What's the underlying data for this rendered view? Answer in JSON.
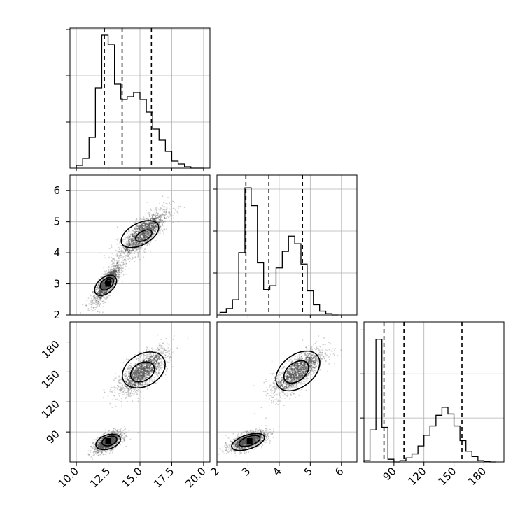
{
  "chart_data": {
    "type": "corner",
    "parameters": [
      {
        "id": "p1",
        "range": [
          9.5,
          20.5
        ],
        "ticks": [
          "10.0",
          "12.5",
          "15.0",
          "17.5",
          "20.0"
        ],
        "tick_values": [
          10,
          12.5,
          15,
          17.5,
          20
        ]
      },
      {
        "id": "p2",
        "range": [
          2,
          6.5
        ],
        "ticks": [
          "2",
          "3",
          "4",
          "5",
          "6"
        ],
        "tick_values": [
          2,
          3,
          4,
          5,
          6
        ]
      },
      {
        "id": "p3",
        "range": [
          60,
          200
        ],
        "ticks": [
          "90",
          "120",
          "150",
          "180"
        ],
        "tick_values": [
          90,
          120,
          150,
          180
        ]
      }
    ],
    "histograms": [
      {
        "param": "p1",
        "bin_edges": [
          10,
          10.5,
          11,
          11.5,
          12,
          12.5,
          13,
          13.5,
          14,
          14.5,
          15,
          15.5,
          16,
          16.5,
          17,
          17.5,
          18,
          18.5,
          19,
          19.5,
          20
        ],
        "counts": [
          0.02,
          0.07,
          0.22,
          0.57,
          0.95,
          0.88,
          0.6,
          0.49,
          0.51,
          0.54,
          0.49,
          0.4,
          0.28,
          0.2,
          0.12,
          0.05,
          0.03,
          0.01,
          0,
          0
        ],
        "ymax": 1.0,
        "quantiles": [
          12.2,
          13.6,
          15.9
        ]
      },
      {
        "param": "p2",
        "bin_edges": [
          2.1,
          2.3,
          2.5,
          2.7,
          2.9,
          3.1,
          3.3,
          3.5,
          3.7,
          3.9,
          4.1,
          4.3,
          4.5,
          4.7,
          4.9,
          5.1,
          5.3,
          5.5,
          5.7,
          5.9
        ],
        "counts": [
          0.02,
          0.05,
          0.12,
          0.49,
          1.0,
          0.86,
          0.41,
          0.2,
          0.23,
          0.37,
          0.5,
          0.62,
          0.56,
          0.4,
          0.19,
          0.08,
          0.03,
          0.01,
          0
        ],
        "ymax": 1.1,
        "quantiles": [
          2.93,
          3.67,
          4.75
        ]
      },
      {
        "param": "p3",
        "bin_edges": [
          60,
          66,
          72,
          78,
          84,
          90,
          96,
          102,
          108,
          114,
          120,
          126,
          132,
          138,
          144,
          150,
          156,
          162,
          168,
          174,
          180,
          186,
          192
        ],
        "counts": [
          0.01,
          0.24,
          0.92,
          0.26,
          0.02,
          0,
          0.01,
          0.03,
          0.06,
          0.12,
          0.2,
          0.27,
          0.35,
          0.41,
          0.36,
          0.27,
          0.16,
          0.08,
          0.04,
          0.01,
          0.005,
          0,
          0
        ],
        "ymax": 1.05,
        "quantiles": [
          80,
          100,
          158
        ]
      }
    ],
    "hist_y_ticks": [
      0.33,
      0.66,
      0.99
    ],
    "scatter_panels": [
      {
        "x": "p1",
        "y": "p2",
        "components": [
          {
            "mx": 12.4,
            "my": 3.0,
            "sx": 0.55,
            "sy": 0.32,
            "rho": 0.8,
            "weight": 0.5
          },
          {
            "mx": 15.2,
            "my": 4.6,
            "sx": 1.0,
            "sy": 0.42,
            "rho": 0.8,
            "weight": 0.5
          }
        ],
        "contours": [
          {
            "cx": 12.3,
            "cy": 2.95,
            "rx": 1.0,
            "ry": 0.25,
            "angle": -40
          },
          {
            "cx": 12.4,
            "cy": 3.0,
            "rx": 0.6,
            "ry": 0.16,
            "angle": -40
          },
          {
            "cx": 12.5,
            "cy": 3.05,
            "rx": 0.25,
            "ry": 0.08,
            "angle": -40
          },
          {
            "cx": 15.0,
            "cy": 4.6,
            "rx": 1.6,
            "ry": 0.35,
            "angle": -28
          },
          {
            "cx": 15.3,
            "cy": 4.55,
            "rx": 0.7,
            "ry": 0.15,
            "angle": -28
          }
        ],
        "peak": {
          "x": 12.5,
          "y": 3.0
        }
      },
      {
        "x": "p1",
        "y": "p3",
        "components": [
          {
            "mx": 12.5,
            "my": 80,
            "sx": 0.55,
            "sy": 5,
            "rho": 0.6,
            "weight": 0.5
          },
          {
            "mx": 15.2,
            "my": 150,
            "sx": 1.0,
            "sy": 12,
            "rho": 0.75,
            "weight": 0.5
          }
        ],
        "contours": [
          {
            "cx": 12.5,
            "cy": 80,
            "rx": 1.0,
            "ry": 7,
            "angle": -18
          },
          {
            "cx": 12.6,
            "cy": 81,
            "rx": 0.6,
            "ry": 4.5,
            "angle": -18
          },
          {
            "cx": 15.3,
            "cy": 152,
            "rx": 1.8,
            "ry": 16,
            "angle": -30
          },
          {
            "cx": 15.2,
            "cy": 150,
            "rx": 1.0,
            "ry": 9,
            "angle": -30
          }
        ],
        "peak": {
          "x": 12.5,
          "y": 81
        }
      },
      {
        "x": "p2",
        "y": "p3",
        "components": [
          {
            "mx": 3.0,
            "my": 81,
            "sx": 0.3,
            "sy": 5,
            "rho": 0.6,
            "weight": 0.5
          },
          {
            "mx": 4.6,
            "my": 150,
            "sx": 0.42,
            "sy": 12,
            "rho": 0.75,
            "weight": 0.5
          }
        ],
        "contours": [
          {
            "cx": 3.0,
            "cy": 80,
            "rx": 0.55,
            "ry": 7,
            "angle": -18
          },
          {
            "cx": 3.05,
            "cy": 81,
            "rx": 0.35,
            "ry": 4.5,
            "angle": -18
          },
          {
            "cx": 4.6,
            "cy": 151,
            "rx": 0.8,
            "ry": 16,
            "angle": -38
          },
          {
            "cx": 4.55,
            "cy": 150,
            "rx": 0.45,
            "ry": 9,
            "angle": -38
          }
        ],
        "peak": {
          "x": 3.05,
          "y": 81
        }
      }
    ],
    "grid": true,
    "colors": {
      "line": "#000000",
      "grid": "#b0b0b0",
      "points": "#555555"
    }
  }
}
